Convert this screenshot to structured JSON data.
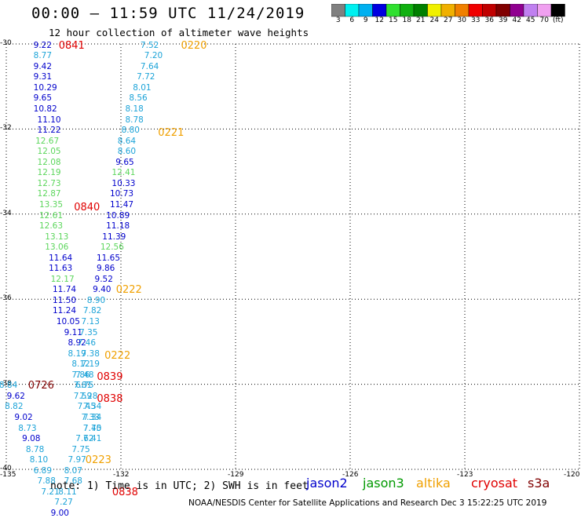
{
  "header": {
    "title": "00:00 – 11:59 UTC 11/24/2019",
    "subtitle": "12 hour collection of altimeter wave heights"
  },
  "colorbar": {
    "colors": [
      "#808080",
      "#00f0f0",
      "#00b0f0",
      "#0000e0",
      "#30e030",
      "#10b010",
      "#008000",
      "#f0f000",
      "#f0b000",
      "#f08000",
      "#f00000",
      "#c00000",
      "#800000",
      "#900090",
      "#c080f0",
      "#f0a0f0",
      "#000000"
    ],
    "labels": [
      "3",
      "6",
      "9",
      "12",
      "15",
      "18",
      "21",
      "24",
      "27",
      "30",
      "33",
      "36",
      "39",
      "42",
      "45",
      "70",
      "(ft)"
    ]
  },
  "map": {
    "lat_range": [
      -40,
      -30
    ],
    "lon_range": [
      -135,
      -120
    ],
    "lat_ticks": [
      -30,
      -32,
      -34,
      -36,
      -38,
      -40
    ],
    "lon_ticks": [
      -135,
      -132,
      -129,
      -126,
      -123,
      -120
    ],
    "grid": true
  },
  "observations": [
    {
      "lon": -134.0,
      "lat": -30.05,
      "swh": "9.22",
      "color": "#0000cc"
    },
    {
      "lon": -134.0,
      "lat": -30.3,
      "swh": "8.77",
      "color": "#1ca3d8"
    },
    {
      "lon": -134.0,
      "lat": -30.55,
      "swh": "9.42",
      "color": "#0000cc"
    },
    {
      "lon": -134.0,
      "lat": -30.8,
      "swh": "9.31",
      "color": "#0000cc"
    },
    {
      "lon": -134.0,
      "lat": -31.05,
      "swh": "10.29",
      "color": "#0000cc"
    },
    {
      "lon": -134.0,
      "lat": -31.3,
      "swh": "9.65",
      "color": "#0000cc"
    },
    {
      "lon": -134.0,
      "lat": -31.55,
      "swh": "10.82",
      "color": "#0000cc"
    },
    {
      "lon": -133.9,
      "lat": -31.8,
      "swh": "11.10",
      "color": "#0000cc"
    },
    {
      "lon": -133.9,
      "lat": -32.05,
      "swh": "11.22",
      "color": "#0000cc"
    },
    {
      "lon": -133.95,
      "lat": -32.3,
      "swh": "12.67",
      "color": "#5cd65c"
    },
    {
      "lon": -133.9,
      "lat": -32.55,
      "swh": "12.05",
      "color": "#5cd65c"
    },
    {
      "lon": -133.9,
      "lat": -32.8,
      "swh": "12.08",
      "color": "#5cd65c"
    },
    {
      "lon": -133.9,
      "lat": -33.05,
      "swh": "12.19",
      "color": "#5cd65c"
    },
    {
      "lon": -133.9,
      "lat": -33.3,
      "swh": "12.73",
      "color": "#5cd65c"
    },
    {
      "lon": -133.9,
      "lat": -33.55,
      "swh": "12.87",
      "color": "#5cd65c"
    },
    {
      "lon": -133.85,
      "lat": -33.8,
      "swh": "13.35",
      "color": "#5cd65c"
    },
    {
      "lon": -133.85,
      "lat": -34.05,
      "swh": "12.61",
      "color": "#5cd65c"
    },
    {
      "lon": -133.85,
      "lat": -34.3,
      "swh": "12.63",
      "color": "#5cd65c"
    },
    {
      "lon": -133.7,
      "lat": -34.55,
      "swh": "13.13",
      "color": "#5cd65c"
    },
    {
      "lon": -133.7,
      "lat": -34.8,
      "swh": "13.06",
      "color": "#5cd65c"
    },
    {
      "lon": -133.6,
      "lat": -35.05,
      "swh": "11.64",
      "color": "#0000cc"
    },
    {
      "lon": -133.6,
      "lat": -35.3,
      "swh": "11.63",
      "color": "#0000cc"
    },
    {
      "lon": -133.55,
      "lat": -35.55,
      "swh": "12.17",
      "color": "#5cd65c"
    },
    {
      "lon": -133.5,
      "lat": -35.8,
      "swh": "11.74",
      "color": "#0000cc"
    },
    {
      "lon": -133.5,
      "lat": -36.05,
      "swh": "11.50",
      "color": "#0000cc"
    },
    {
      "lon": -133.5,
      "lat": -36.3,
      "swh": "11.24",
      "color": "#0000cc"
    },
    {
      "lon": -133.4,
      "lat": -36.55,
      "swh": "10.05",
      "color": "#0000cc"
    },
    {
      "lon": -133.2,
      "lat": -36.8,
      "swh": "9.11",
      "color": "#0000cc"
    },
    {
      "lon": -133.1,
      "lat": -37.05,
      "swh": "8.92",
      "color": "#0000cc"
    },
    {
      "lon": -133.1,
      "lat": -37.3,
      "swh": "8.19",
      "color": "#1ca3d8"
    },
    {
      "lon": -133.0,
      "lat": -37.55,
      "swh": "8.12",
      "color": "#1ca3d8"
    },
    {
      "lon": -133.0,
      "lat": -37.8,
      "swh": "7.86",
      "color": "#1ca3d8"
    },
    {
      "lon": -132.9,
      "lat": -38.05,
      "swh": "6.75",
      "color": "#1ca3d8"
    },
    {
      "lon": -132.8,
      "lat": -38.3,
      "swh": "7.28",
      "color": "#1ca3d8"
    },
    {
      "lon": -132.7,
      "lat": -38.55,
      "swh": "7.34",
      "color": "#1ca3d8"
    },
    {
      "lon": -132.7,
      "lat": -38.8,
      "swh": "7.34",
      "color": "#1ca3d8"
    },
    {
      "lon": -132.7,
      "lat": -39.05,
      "swh": "7.70",
      "color": "#1ca3d8"
    },
    {
      "lon": -132.9,
      "lat": -39.3,
      "swh": "7.62",
      "color": "#1ca3d8"
    },
    {
      "lon": -133.0,
      "lat": -39.55,
      "swh": "7.75",
      "color": "#1ca3d8"
    },
    {
      "lon": -133.1,
      "lat": -39.8,
      "swh": "7.97",
      "color": "#1ca3d8"
    },
    {
      "lon": -133.2,
      "lat": -40.05,
      "swh": "8.07",
      "color": "#1ca3d8"
    },
    {
      "lon": -133.2,
      "lat": -40.3,
      "swh": "7.68",
      "color": "#1ca3d8"
    },
    {
      "lon": -133.35,
      "lat": -40.55,
      "swh": "8.11",
      "color": "#1ca3d8"
    },
    {
      "lon": -133.45,
      "lat": -40.8,
      "swh": "7.27",
      "color": "#1ca3d8"
    },
    {
      "lon": -133.55,
      "lat": -41.05,
      "swh": "9.00",
      "color": "#0000cc"
    },
    {
      "lon": -131.2,
      "lat": -30.05,
      "swh": "7.52",
      "color": "#1ca3d8"
    },
    {
      "lon": -131.1,
      "lat": -30.3,
      "swh": "7.20",
      "color": "#1ca3d8"
    },
    {
      "lon": -131.2,
      "lat": -30.55,
      "swh": "7.64",
      "color": "#1ca3d8"
    },
    {
      "lon": -131.3,
      "lat": -30.8,
      "swh": "7.72",
      "color": "#1ca3d8"
    },
    {
      "lon": -131.4,
      "lat": -31.05,
      "swh": "8.01",
      "color": "#1ca3d8"
    },
    {
      "lon": -131.5,
      "lat": -31.3,
      "swh": "8.56",
      "color": "#1ca3d8"
    },
    {
      "lon": -131.6,
      "lat": -31.55,
      "swh": "8.18",
      "color": "#1ca3d8"
    },
    {
      "lon": -131.6,
      "lat": -31.8,
      "swh": "8.78",
      "color": "#1ca3d8"
    },
    {
      "lon": -131.7,
      "lat": -32.05,
      "swh": "8.80",
      "color": "#1ca3d8"
    },
    {
      "lon": -131.8,
      "lat": -32.3,
      "swh": "8.64",
      "color": "#1ca3d8"
    },
    {
      "lon": -131.8,
      "lat": -32.55,
      "swh": "8.60",
      "color": "#1ca3d8"
    },
    {
      "lon": -131.85,
      "lat": -32.8,
      "swh": "9.65",
      "color": "#0000cc"
    },
    {
      "lon": -131.95,
      "lat": -33.05,
      "swh": "12.41",
      "color": "#5cd65c"
    },
    {
      "lon": -131.95,
      "lat": -33.3,
      "swh": "10.33",
      "color": "#0000cc"
    },
    {
      "lon": -132.0,
      "lat": -33.55,
      "swh": "10.73",
      "color": "#0000cc"
    },
    {
      "lon": -132.0,
      "lat": -33.8,
      "swh": "11.47",
      "color": "#0000cc"
    },
    {
      "lon": -132.1,
      "lat": -34.05,
      "swh": "10.89",
      "color": "#0000cc"
    },
    {
      "lon": -132.1,
      "lat": -34.3,
      "swh": "11.18",
      "color": "#0000cc"
    },
    {
      "lon": -132.2,
      "lat": -34.55,
      "swh": "11.39",
      "color": "#0000cc"
    },
    {
      "lon": -132.25,
      "lat": -34.8,
      "swh": "12.56",
      "color": "#5cd65c"
    },
    {
      "lon": -132.35,
      "lat": -35.05,
      "swh": "11.65",
      "color": "#0000cc"
    },
    {
      "lon": -132.35,
      "lat": -35.3,
      "swh": "9.86",
      "color": "#0000cc"
    },
    {
      "lon": -132.4,
      "lat": -35.55,
      "swh": "9.52",
      "color": "#0000cc"
    },
    {
      "lon": -132.45,
      "lat": -35.8,
      "swh": "9.40",
      "color": "#0000cc"
    },
    {
      "lon": -132.6,
      "lat": -36.05,
      "swh": "8.90",
      "color": "#1ca3d8"
    },
    {
      "lon": -132.7,
      "lat": -36.3,
      "swh": "7.82",
      "color": "#1ca3d8"
    },
    {
      "lon": -132.75,
      "lat": -36.55,
      "swh": "7.13",
      "color": "#1ca3d8"
    },
    {
      "lon": -132.8,
      "lat": -36.8,
      "swh": "7.35",
      "color": "#1ca3d8"
    },
    {
      "lon": -132.85,
      "lat": -37.05,
      "swh": "7.46",
      "color": "#1ca3d8"
    },
    {
      "lon": -132.75,
      "lat": -37.3,
      "swh": "7.38",
      "color": "#1ca3d8"
    },
    {
      "lon": -132.75,
      "lat": -37.55,
      "swh": "7.19",
      "color": "#1ca3d8"
    },
    {
      "lon": -132.9,
      "lat": -37.8,
      "swh": "7.48",
      "color": "#1ca3d8"
    },
    {
      "lon": -132.95,
      "lat": -38.05,
      "swh": "7.81",
      "color": "#1ca3d8"
    },
    {
      "lon": -132.95,
      "lat": -38.3,
      "swh": "7.59",
      "color": "#1ca3d8"
    },
    {
      "lon": -132.85,
      "lat": -38.55,
      "swh": "7.45",
      "color": "#1ca3d8"
    },
    {
      "lon": -132.75,
      "lat": -38.8,
      "swh": "7.33",
      "color": "#1ca3d8"
    },
    {
      "lon": -132.7,
      "lat": -39.05,
      "swh": "7.45",
      "color": "#1ca3d8"
    },
    {
      "lon": -132.7,
      "lat": -39.3,
      "swh": "7.41",
      "color": "#1ca3d8"
    },
    {
      "lon": -134.9,
      "lat": -38.05,
      "swh": "8.84",
      "color": "#1ca3d8"
    },
    {
      "lon": -134.7,
      "lat": -38.3,
      "swh": "9.62",
      "color": "#0000cc"
    },
    {
      "lon": -134.75,
      "lat": -38.55,
      "swh": "8.82",
      "color": "#1ca3d8"
    },
    {
      "lon": -134.5,
      "lat": -38.8,
      "swh": "9.02",
      "color": "#0000cc"
    },
    {
      "lon": -134.4,
      "lat": -39.05,
      "swh": "8.73",
      "color": "#1ca3d8"
    },
    {
      "lon": -134.3,
      "lat": -39.3,
      "swh": "9.08",
      "color": "#0000cc"
    },
    {
      "lon": -134.2,
      "lat": -39.55,
      "swh": "8.78",
      "color": "#1ca3d8"
    },
    {
      "lon": -134.1,
      "lat": -39.8,
      "swh": "8.10",
      "color": "#1ca3d8"
    },
    {
      "lon": -134.0,
      "lat": -40.05,
      "swh": "6.89",
      "color": "#1ca3d8"
    },
    {
      "lon": -133.9,
      "lat": -40.3,
      "swh": "7.88",
      "color": "#1ca3d8"
    },
    {
      "lon": -133.8,
      "lat": -40.55,
      "swh": "7.21",
      "color": "#1ca3d8"
    }
  ],
  "time_labels": [
    {
      "lon": -133.3,
      "lat": -30.05,
      "text": "0841",
      "color": "#e00000"
    },
    {
      "lon": -130.1,
      "lat": -30.05,
      "text": "0220",
      "color": "#f0a000"
    },
    {
      "lon": -130.7,
      "lat": -32.1,
      "text": "0221",
      "color": "#f0a000"
    },
    {
      "lon": -132.9,
      "lat": -33.85,
      "text": "0840",
      "color": "#e00000"
    },
    {
      "lon": -131.8,
      "lat": -35.8,
      "text": "0222",
      "color": "#f0a000"
    },
    {
      "lon": -132.1,
      "lat": -37.35,
      "text": "0222",
      "color": "#f0a000"
    },
    {
      "lon": -132.3,
      "lat": -37.85,
      "text": "0839",
      "color": "#e00000"
    },
    {
      "lon": -134.1,
      "lat": -38.05,
      "text": "0726",
      "color": "#800000"
    },
    {
      "lon": -132.3,
      "lat": -38.35,
      "text": "0838",
      "color": "#e00000"
    },
    {
      "lon": -132.6,
      "lat": -39.8,
      "text": "0223",
      "color": "#f0a000"
    },
    {
      "lon": -131.9,
      "lat": -40.55,
      "text": "0838",
      "color": "#e00000"
    }
  ],
  "note": "note: 1) Time is in UTC; 2) SWH is in feet",
  "legend": [
    {
      "name": "jason2",
      "color": "#0000cc"
    },
    {
      "name": "jason3",
      "color": "#009900"
    },
    {
      "name": "altika",
      "color": "#f0a000"
    },
    {
      "name": "cryosat",
      "color": "#e00000"
    },
    {
      "name": "s3a",
      "color": "#800000"
    }
  ],
  "footer": "NOAA/NESDIS Center for Satellite Applications and Research    Dec  3 15:22:25 UTC 2019"
}
